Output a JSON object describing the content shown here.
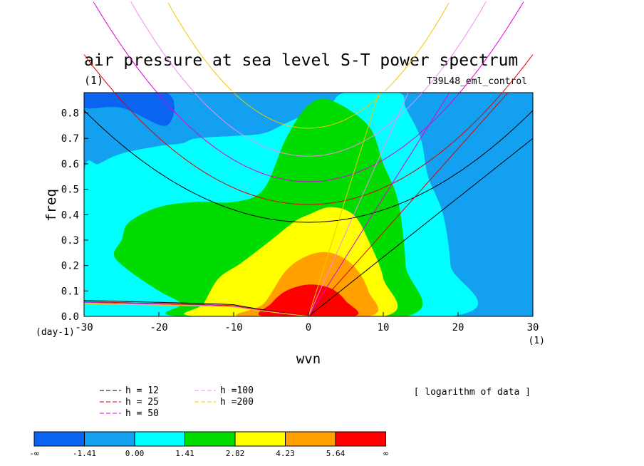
{
  "chart_data": {
    "type": "heatmap",
    "title": "air pressure at sea level S-T power spectrum",
    "subtitle_left": "(1)",
    "subtitle_right": "T39L48_eml_control",
    "xlabel": "wvn",
    "ylabel": "freq",
    "x_units": "(1)",
    "y_units": "(day-1)",
    "xlim": [
      -30,
      30
    ],
    "ylim": [
      0,
      0.88
    ],
    "x_ticks": [
      "-30",
      "-20",
      "-10",
      "0",
      "10",
      "20",
      "30"
    ],
    "x_tick_values": [
      -30,
      -20,
      -10,
      0,
      10,
      20,
      30
    ],
    "y_ticks": [
      "0.0",
      "0.1",
      "0.2",
      "0.3",
      "0.4",
      "0.5",
      "0.6",
      "0.7",
      "0.8"
    ],
    "y_tick_values": [
      0,
      0.1,
      0.2,
      0.3,
      0.4,
      0.5,
      0.6,
      0.7,
      0.8
    ],
    "note": "[ logarithm of data ]",
    "colorbar": {
      "labels": [
        "-∞",
        "-1.41",
        "0.00",
        "1.41",
        "2.82",
        "4.23",
        "5.64",
        "∞"
      ],
      "colors": [
        "#0a64f0",
        "#14a0f0",
        "#00ffff",
        "#00dc00",
        "#ffff00",
        "#ffa000",
        "#ff0000"
      ]
    },
    "dispersion_legend": [
      {
        "label": "h = 12",
        "color": "#000000"
      },
      {
        "label": "h = 25",
        "color": "#dc0000"
      },
      {
        "label": "h = 50",
        "color": "#dc00dc"
      },
      {
        "label": "h =100",
        "color": "#f08cf0"
      },
      {
        "label": "h =200",
        "color": "#f0c800"
      }
    ],
    "series": [
      {
        "name": "h = 12",
        "color": "#000000",
        "values": {
          "min_freq": 0.37,
          "freq_at_30": 0.81
        }
      },
      {
        "name": "h = 25",
        "color": "#dc0000",
        "values": {
          "min_freq": 0.44,
          "freq_at_30": 1.03
        }
      },
      {
        "name": "h = 50",
        "color": "#dc00dc",
        "values": {
          "min_freq": 0.53,
          "freq_at_30": 1.3
        }
      },
      {
        "name": "h =100",
        "color": "#f08cf0",
        "values": {
          "min_freq": 0.63,
          "freq_at_30": 1.6
        }
      },
      {
        "name": "h =200",
        "color": "#f0c800",
        "values": {
          "min_freq": 0.74,
          "freq_at_30": 2.0
        }
      }
    ],
    "kelvin_freq_at_30": [
      0.7,
      0.99,
      1.4,
      1.98,
      2.8
    ],
    "rossby_freq_at_minus30": [
      0.06,
      0.055,
      0.052,
      0.05,
      0.048
    ],
    "contour_levels": [
      {
        "level": "0.00",
        "color": "#00ffff",
        "points": [
          [
            -30,
            0.56
          ],
          [
            -28,
            0.6
          ],
          [
            -25,
            0.64
          ],
          [
            -20,
            0.67
          ],
          [
            -17,
            0.68
          ],
          [
            -15,
            0.7
          ],
          [
            -10,
            0.71
          ],
          [
            -6,
            0.72
          ],
          [
            -3,
            0.76
          ],
          [
            0,
            0.8
          ],
          [
            3,
            0.84
          ],
          [
            5,
            0.88
          ],
          [
            12,
            0.88
          ],
          [
            13,
            0.82
          ],
          [
            15,
            0.7
          ],
          [
            16,
            0.55
          ],
          [
            18,
            0.4
          ],
          [
            19,
            0.2
          ],
          [
            19,
            0.0
          ],
          [
            -30,
            0.0
          ]
        ]
      },
      {
        "level": "1.41",
        "color": "#00dc00",
        "points": [
          [
            -25,
            0.3
          ],
          [
            -24,
            0.37
          ],
          [
            -20,
            0.43
          ],
          [
            -15,
            0.45
          ],
          [
            -10,
            0.45
          ],
          [
            -6,
            0.5
          ],
          [
            -3,
            0.7
          ],
          [
            0,
            0.83
          ],
          [
            3,
            0.85
          ],
          [
            8,
            0.75
          ],
          [
            10,
            0.6
          ],
          [
            12,
            0.45
          ],
          [
            13,
            0.2
          ],
          [
            13,
            0.0
          ],
          [
            -17,
            0.0
          ],
          [
            -17,
            0.05
          ],
          [
            -20,
            0.1
          ],
          [
            -24,
            0.18
          ],
          [
            -26,
            0.24
          ]
        ]
      },
      {
        "level": "2.82",
        "color": "#ffff00",
        "points": [
          [
            -14,
            0.05
          ],
          [
            -12,
            0.15
          ],
          [
            -9,
            0.21
          ],
          [
            -5,
            0.3
          ],
          [
            -2,
            0.37
          ],
          [
            0,
            0.4
          ],
          [
            3,
            0.43
          ],
          [
            6,
            0.4
          ],
          [
            8,
            0.3
          ],
          [
            10,
            0.15
          ],
          [
            10,
            0.0
          ],
          [
            -15,
            0.0
          ]
        ]
      },
      {
        "level": "4.23",
        "color": "#ffa000",
        "points": [
          [
            -6,
            0.05
          ],
          [
            -3,
            0.18
          ],
          [
            0,
            0.24
          ],
          [
            3,
            0.25
          ],
          [
            6,
            0.2
          ],
          [
            8,
            0.1
          ],
          [
            8,
            0.0
          ],
          [
            -9,
            0.0
          ]
        ]
      },
      {
        "level": "5.64",
        "color": "#ff0000",
        "points": [
          [
            -6,
            0.0
          ],
          [
            -5,
            0.05
          ],
          [
            -3,
            0.1
          ],
          [
            0,
            0.125
          ],
          [
            3,
            0.11
          ],
          [
            5,
            0.06
          ],
          [
            6,
            0.0
          ]
        ]
      },
      {
        "level": "-1.41",
        "color": "#0a64f0",
        "points": [
          [
            -30,
            0.88
          ],
          [
            -30,
            0.82
          ],
          [
            -25,
            0.82
          ],
          [
            -19,
            0.75
          ],
          [
            -19,
            0.88
          ]
        ]
      }
    ]
  }
}
